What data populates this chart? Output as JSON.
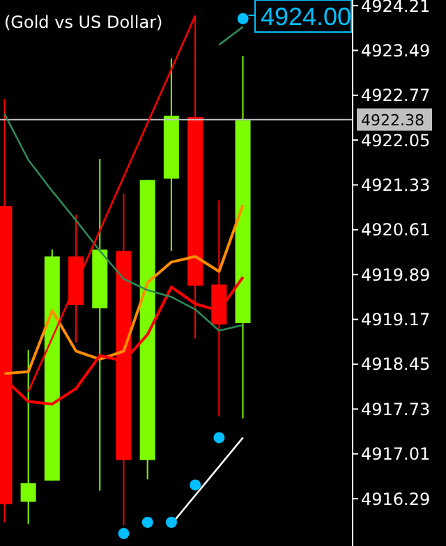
{
  "chart_data": {
    "type": "candlestick",
    "title": "(Gold vs US Dollar)",
    "categories": [
      null,
      null,
      null,
      null,
      null,
      null,
      null,
      null,
      null,
      null,
      null
    ],
    "ohlc": [
      [
        4920.99,
        4922.71,
        4915.91,
        4916.2
      ],
      [
        4916.24,
        4918.68,
        4915.88,
        4916.54
      ],
      [
        4916.58,
        4920.29,
        4916.58,
        4920.18
      ],
      [
        4920.18,
        4920.85,
        4918.8,
        4919.4
      ],
      [
        4919.35,
        4921.75,
        4916.42,
        4920.29
      ],
      [
        4920.27,
        4921.19,
        4915.86,
        4916.91
      ],
      [
        4916.91,
        4921.41,
        4916.6,
        4921.41
      ],
      [
        4921.43,
        4923.36,
        4920.27,
        4922.44
      ],
      [
        4922.42,
        4924.01,
        4918.86,
        4919.71
      ],
      [
        4919.73,
        4921.08,
        4917.61,
        4919.09
      ],
      [
        4919.11,
        4923.4,
        4917.58,
        4922.37
      ]
    ],
    "colors": [
      "#ff0000",
      "#7cfc00",
      "#7cfc00",
      "#ff0000",
      "#7cfc00",
      "#ff0000",
      "#7cfc00",
      "#7cfc00",
      "#ff0000",
      "#ff0000",
      "#7cfc00"
    ],
    "series": [
      {
        "type": "line",
        "color": "#ff8c00",
        "values": [
          4918.3,
          4918.33,
          4919.31,
          4918.66,
          4918.53,
          4918.66,
          4919.76,
          4920.09,
          4920.18,
          4919.94,
          4921.01
        ]
      },
      {
        "type": "line",
        "color": "#ff0000",
        "values": [
          4918.21,
          4917.85,
          4917.81,
          4918.06,
          4918.59,
          4918.5,
          4918.93,
          4919.69,
          4919.42,
          4919.31,
          4919.85
        ]
      },
      {
        "type": "line",
        "color": "#2e8b57",
        "values": [
          4922.47,
          4921.73,
          4921.23,
          4920.76,
          4920.27,
          4919.82,
          4919.64,
          4919.53,
          4919.33,
          4918.99,
          4919.08
        ]
      },
      {
        "type": "line",
        "color": "#2e8b57",
        "values": [
          null,
          null,
          null,
          null,
          null,
          null,
          null,
          null,
          null,
          4923.58,
          4923.87
        ]
      },
      {
        "type": "line",
        "color": "#ff0000",
        "values": [
          null,
          4918.01,
          null,
          null,
          null,
          null,
          null,
          null,
          4924.05,
          null,
          null
        ]
      },
      {
        "type": "line",
        "color": "#ffffff",
        "values": [
          null,
          null,
          null,
          null,
          null,
          null,
          null,
          4915.88,
          null,
          null,
          4917.27
        ]
      },
      {
        "type": "scatter",
        "color": "#00bfff",
        "values": [
          null,
          null,
          null,
          null,
          null,
          4915.73,
          4915.91,
          4915.91,
          4916.51,
          4917.27,
          4924.0
        ]
      }
    ],
    "ylim": [
      4915.53,
      4924.3
    ],
    "yticks": [
      4916.29,
      4917.01,
      4917.73,
      4918.45,
      4919.17,
      4919.89,
      4920.61,
      4921.33,
      4922.05,
      4922.77,
      4923.49,
      4924.21
    ],
    "ref_lines": [
      {
        "axis": "y",
        "value": 4922.38,
        "label": "4922.38",
        "color": "#c0c0c0"
      }
    ],
    "annotations": [
      "4924.00"
    ],
    "tick_labels": "y",
    "grid": false
  }
}
